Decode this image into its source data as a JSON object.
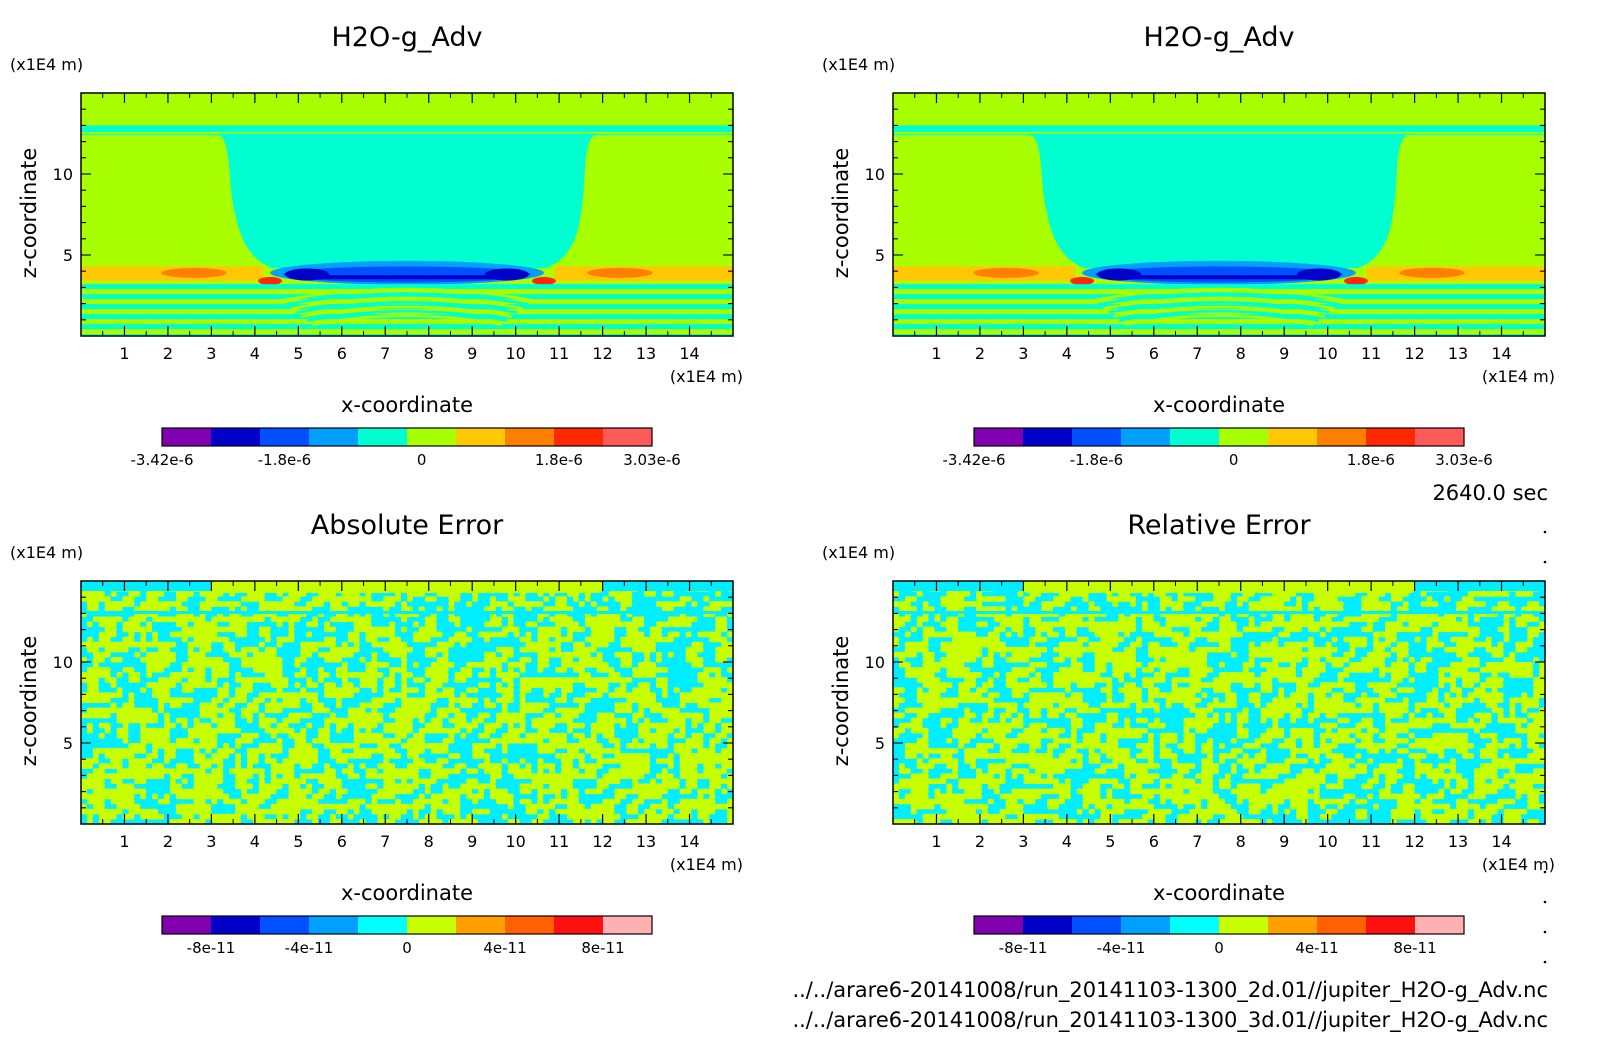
{
  "time_label": "2640.0 sec",
  "file_paths": [
    "../../arare6-20141008/run_20141103-1300_2d.01//jupiter_H2O-g_Adv.nc",
    "../../arare6-20141008/run_20141103-1300_3d.01//jupiter_H2O-g_Adv.nc"
  ],
  "chart_data": [
    {
      "type": "heatmap",
      "title": "H2O-g_Adv",
      "xlabel": "x-coordinate",
      "ylabel": "z-coordinate",
      "x_unit": "(x1E4 m)",
      "y_unit": "(x1E4 m)",
      "xlim": [
        0,
        15
      ],
      "ylim": [
        0,
        15
      ],
      "x_ticks": [
        "1",
        "2",
        "3",
        "4",
        "5",
        "6",
        "7",
        "8",
        "9",
        "10",
        "11",
        "12",
        "13",
        "14"
      ],
      "y_ticks": [
        "5",
        "10"
      ],
      "field": "advection",
      "colorbar": {
        "colors": [
          "#8000b0",
          "#0000c8",
          "#0050ff",
          "#00a0ff",
          "#00ffd0",
          "#a8ff00",
          "#ffc800",
          "#ff8000",
          "#ff2800",
          "#ff5a5a"
        ],
        "labels": [
          "-3.42e-6",
          "-1.8e-6",
          "0",
          "1.8e-6",
          "3.03e-6"
        ],
        "label_positions": [
          0.0,
          0.25,
          0.53,
          0.81,
          1.0
        ],
        "range": [
          -3.42e-06,
          3.03e-06
        ]
      }
    },
    {
      "type": "heatmap",
      "title": "H2O-g_Adv",
      "xlabel": "x-coordinate",
      "ylabel": "z-coordinate",
      "x_unit": "(x1E4 m)",
      "y_unit": "(x1E4 m)",
      "xlim": [
        0,
        15
      ],
      "ylim": [
        0,
        15
      ],
      "x_ticks": [
        "1",
        "2",
        "3",
        "4",
        "5",
        "6",
        "7",
        "8",
        "9",
        "10",
        "11",
        "12",
        "13",
        "14"
      ],
      "y_ticks": [
        "5",
        "10"
      ],
      "field": "advection",
      "colorbar": {
        "colors": [
          "#8000b0",
          "#0000c8",
          "#0050ff",
          "#00a0ff",
          "#00ffd0",
          "#a8ff00",
          "#ffc800",
          "#ff8000",
          "#ff2800",
          "#ff5a5a"
        ],
        "labels": [
          "-3.42e-6",
          "-1.8e-6",
          "0",
          "1.8e-6",
          "3.03e-6"
        ],
        "label_positions": [
          0.0,
          0.25,
          0.53,
          0.81,
          1.0
        ],
        "range": [
          -3.42e-06,
          3.03e-06
        ]
      }
    },
    {
      "type": "heatmap",
      "title": "Absolute Error",
      "xlabel": "x-coordinate",
      "ylabel": "z-coordinate",
      "x_unit": "(x1E4 m)",
      "y_unit": "(x1E4 m)",
      "xlim": [
        0,
        15
      ],
      "ylim": [
        0,
        15
      ],
      "x_ticks": [
        "1",
        "2",
        "3",
        "4",
        "5",
        "6",
        "7",
        "8",
        "9",
        "10",
        "11",
        "12",
        "13",
        "14"
      ],
      "y_ticks": [
        "5",
        "10"
      ],
      "field": "noise",
      "noise_seed": 7,
      "colorbar": {
        "colors": [
          "#8000b0",
          "#0000c8",
          "#0050ff",
          "#00a0ff",
          "#00ffff",
          "#c8ff00",
          "#ffa000",
          "#ff6000",
          "#ff1010",
          "#ffb0b0"
        ],
        "labels": [
          "-8e-11",
          "-4e-11",
          "0",
          "4e-11",
          "8e-11"
        ],
        "label_positions": [
          0.1,
          0.3,
          0.5,
          0.7,
          0.9
        ],
        "range": [
          -1e-10,
          1e-10
        ]
      }
    },
    {
      "type": "heatmap",
      "title": "Relative Error",
      "xlabel": "x-coordinate",
      "ylabel": "z-coordinate",
      "x_unit": "(x1E4 m)",
      "y_unit": "(x1E4 m)",
      "xlim": [
        0,
        15
      ],
      "ylim": [
        0,
        15
      ],
      "x_ticks": [
        "1",
        "2",
        "3",
        "4",
        "5",
        "6",
        "7",
        "8",
        "9",
        "10",
        "11",
        "12",
        "13",
        "14"
      ],
      "y_ticks": [
        "5",
        "10"
      ],
      "field": "noise",
      "noise_seed": 13,
      "colorbar": {
        "colors": [
          "#8000b0",
          "#0000c8",
          "#0050ff",
          "#00a0ff",
          "#00ffff",
          "#c8ff00",
          "#ffa000",
          "#ff6000",
          "#ff1010",
          "#ffb0b0"
        ],
        "labels": [
          "-8e-11",
          "-4e-11",
          "0",
          "4e-11",
          "8e-11"
        ],
        "label_positions": [
          0.1,
          0.3,
          0.5,
          0.7,
          0.9
        ],
        "range": [
          -1e-10,
          1e-10
        ]
      }
    }
  ]
}
